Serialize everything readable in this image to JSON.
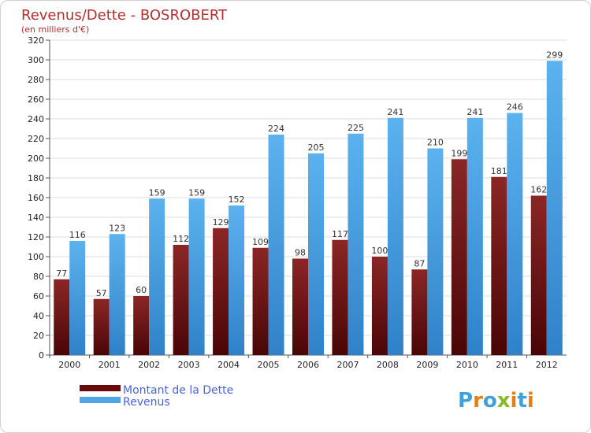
{
  "chart_data": {
    "type": "bar",
    "title": "Revenus/Dette - BOSROBERT",
    "subtitle": "(en milliers d'€)",
    "categories": [
      "2000",
      "2001",
      "2002",
      "2003",
      "2004",
      "2005",
      "2006",
      "2007",
      "2008",
      "2009",
      "2010",
      "2011",
      "2012"
    ],
    "series": [
      {
        "name": "Montant de la Dette",
        "values": [
          77,
          57,
          60,
          112,
          129,
          109,
          98,
          117,
          100,
          87,
          199,
          181,
          162
        ],
        "color": "#7a1a1a"
      },
      {
        "name": "Revenus",
        "values": [
          116,
          123,
          159,
          159,
          152,
          224,
          205,
          225,
          241,
          210,
          241,
          246,
          299
        ],
        "color": "#4ea6e6"
      }
    ],
    "ylim": [
      0,
      320
    ],
    "ytick_step": 20,
    "grid": true,
    "legend_position": "bottom-left"
  },
  "logo": {
    "text": "Proxiti"
  }
}
